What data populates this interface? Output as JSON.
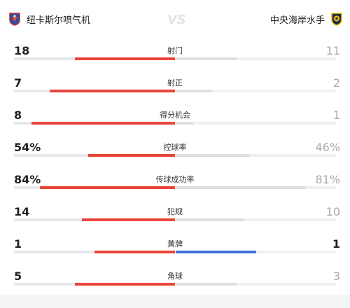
{
  "colors": {
    "home": "#e8463a",
    "away_neutral": "#dcdfe3",
    "away_accent": "#3b73d9",
    "win_text": "#222222",
    "lose_text": "#a9a9a9"
  },
  "home_team": {
    "name": "纽卡斯尔喷气机",
    "logo": "newcastle-jets-logo-icon"
  },
  "away_team": {
    "name": "中央海岸水手",
    "logo": "central-coast-mariners-logo-icon"
  },
  "vs_icon": "vs-icon",
  "stats": [
    {
      "label": "射门",
      "home": "18",
      "away": "11",
      "home_frac": 0.62,
      "away_frac": 0.38
    },
    {
      "label": "射正",
      "home": "7",
      "away": "2",
      "home_frac": 0.78,
      "away_frac": 0.22
    },
    {
      "label": "得分机会",
      "home": "8",
      "away": "1",
      "home_frac": 0.89,
      "away_frac": 0.11
    },
    {
      "label": "控球率",
      "home": "54%",
      "away": "46%",
      "home_frac": 0.54,
      "away_frac": 0.46
    },
    {
      "label": "传球成功率",
      "home": "84%",
      "away": "81%",
      "home_frac": 0.84,
      "away_frac": 0.81
    },
    {
      "label": "犯规",
      "home": "14",
      "away": "10",
      "home_frac": 0.58,
      "away_frac": 0.42
    },
    {
      "label": "黄牌",
      "home": "1",
      "away": "1",
      "home_frac": 0.5,
      "away_frac": 0.5,
      "away_highlight": true
    },
    {
      "label": "角球",
      "home": "5",
      "away": "3",
      "home_frac": 0.62,
      "away_frac": 0.38
    }
  ]
}
